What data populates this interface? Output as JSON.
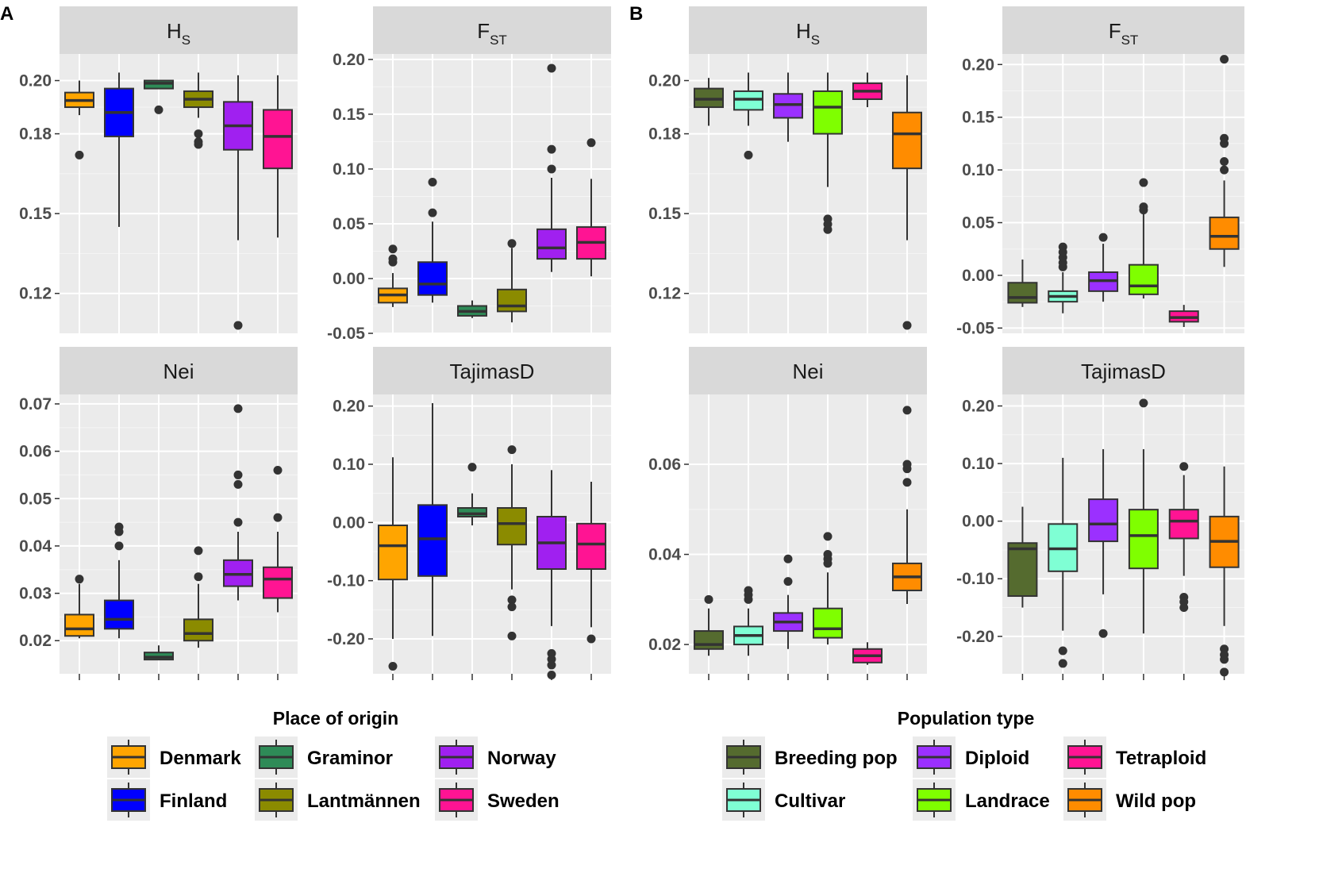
{
  "panel_labels": [
    "A",
    "B"
  ],
  "chart_data": [
    {
      "panel": "A",
      "type": "boxplot",
      "legend_title": "Place of origin",
      "groups": [
        {
          "name": "Denmark",
          "color": "#FFA500"
        },
        {
          "name": "Finland",
          "color": "#0000FF"
        },
        {
          "name": "Graminor",
          "color": "#2E8B57"
        },
        {
          "name": "Lantmännen",
          "color": "#8B8B00"
        },
        {
          "name": "Norway",
          "color": "#A020F0"
        },
        {
          "name": "Sweden",
          "color": "#FF1493"
        }
      ],
      "facets": [
        {
          "title": "Hs",
          "title_main": "H",
          "title_sub": "S",
          "ylim": [
            0.105,
            0.21
          ],
          "yticks": [
            0.12,
            0.15,
            0.18,
            0.2
          ],
          "ytick_labels": [
            "0.12",
            "0.15",
            "0.18",
            "0.20"
          ],
          "boxes": [
            {
              "wlo": 0.187,
              "q1": 0.19,
              "med": 0.1925,
              "q3": 0.1955,
              "whi": 0.2,
              "outliers": [
                0.172
              ]
            },
            {
              "wlo": 0.145,
              "q1": 0.179,
              "med": 0.188,
              "q3": 0.197,
              "whi": 0.203,
              "outliers": []
            },
            {
              "wlo": 0.197,
              "q1": 0.197,
              "med": 0.199,
              "q3": 0.2,
              "whi": 0.2,
              "outliers": [
                0.189
              ]
            },
            {
              "wlo": 0.186,
              "q1": 0.19,
              "med": 0.193,
              "q3": 0.196,
              "whi": 0.203,
              "outliers": [
                0.18,
                0.177,
                0.176
              ]
            },
            {
              "wlo": 0.14,
              "q1": 0.174,
              "med": 0.183,
              "q3": 0.192,
              "whi": 0.202,
              "outliers": [
                0.108
              ]
            },
            {
              "wlo": 0.141,
              "q1": 0.167,
              "med": 0.179,
              "q3": 0.189,
              "whi": 0.202,
              "outliers": []
            }
          ]
        },
        {
          "title": "FST",
          "title_main": "F",
          "title_sub": "ST",
          "ylim": [
            -0.05,
            0.205
          ],
          "yticks": [
            -0.05,
            0.0,
            0.05,
            0.1,
            0.15,
            0.2
          ],
          "ytick_labels": [
            "-0.05",
            "0.00",
            "0.05",
            "0.10",
            "0.15",
            "0.20"
          ],
          "boxes": [
            {
              "wlo": -0.026,
              "q1": -0.022,
              "med": -0.015,
              "q3": -0.009,
              "whi": 0.005,
              "outliers": [
                0.015,
                0.018,
                0.027
              ]
            },
            {
              "wlo": -0.022,
              "q1": -0.015,
              "med": -0.005,
              "q3": 0.015,
              "whi": 0.052,
              "outliers": [
                0.06,
                0.088
              ]
            },
            {
              "wlo": -0.036,
              "q1": -0.034,
              "med": -0.03,
              "q3": -0.025,
              "whi": -0.02,
              "outliers": []
            },
            {
              "wlo": -0.04,
              "q1": -0.03,
              "med": -0.025,
              "q3": -0.01,
              "whi": 0.028,
              "outliers": [
                0.032
              ]
            },
            {
              "wlo": 0.006,
              "q1": 0.018,
              "med": 0.028,
              "q3": 0.045,
              "whi": 0.092,
              "outliers": [
                0.1,
                0.118,
                0.192
              ]
            },
            {
              "wlo": 0.002,
              "q1": 0.018,
              "med": 0.033,
              "q3": 0.047,
              "whi": 0.091,
              "outliers": [
                0.124
              ]
            }
          ]
        },
        {
          "title": "Nei",
          "title_main": "Nei",
          "title_sub": "",
          "ylim": [
            0.013,
            0.072
          ],
          "yticks": [
            0.02,
            0.03,
            0.04,
            0.05,
            0.06,
            0.07
          ],
          "ytick_labels": [
            "0.02",
            "0.03",
            "0.04",
            "0.05",
            "0.06",
            "0.07"
          ],
          "boxes": [
            {
              "wlo": 0.0205,
              "q1": 0.021,
              "med": 0.0225,
              "q3": 0.0255,
              "whi": 0.032,
              "outliers": [
                0.033
              ]
            },
            {
              "wlo": 0.0205,
              "q1": 0.0225,
              "med": 0.0245,
              "q3": 0.0285,
              "whi": 0.037,
              "outliers": [
                0.04,
                0.043,
                0.044
              ]
            },
            {
              "wlo": 0.016,
              "q1": 0.016,
              "med": 0.0165,
              "q3": 0.0175,
              "whi": 0.019,
              "outliers": []
            },
            {
              "wlo": 0.0185,
              "q1": 0.02,
              "med": 0.0215,
              "q3": 0.0245,
              "whi": 0.032,
              "outliers": [
                0.0335,
                0.039
              ]
            },
            {
              "wlo": 0.0285,
              "q1": 0.0315,
              "med": 0.034,
              "q3": 0.037,
              "whi": 0.043,
              "outliers": [
                0.045,
                0.053,
                0.055,
                0.069
              ]
            },
            {
              "wlo": 0.026,
              "q1": 0.029,
              "med": 0.033,
              "q3": 0.0355,
              "whi": 0.043,
              "outliers": [
                0.046,
                0.056
              ]
            }
          ]
        },
        {
          "title": "TajimasD",
          "title_main": "TajimasD",
          "title_sub": "",
          "ylim": [
            -0.26,
            0.22
          ],
          "yticks": [
            -0.2,
            -0.1,
            0.0,
            0.1,
            0.2
          ],
          "ytick_labels": [
            "-0.20",
            "-0.10",
            "0.00",
            "0.10",
            "0.20"
          ],
          "boxes": [
            {
              "wlo": -0.2,
              "q1": -0.098,
              "med": -0.04,
              "q3": -0.005,
              "whi": 0.112,
              "outliers": [
                -0.247
              ]
            },
            {
              "wlo": -0.195,
              "q1": -0.092,
              "med": -0.028,
              "q3": 0.03,
              "whi": 0.205,
              "outliers": []
            },
            {
              "wlo": -0.005,
              "q1": 0.01,
              "med": 0.015,
              "q3": 0.025,
              "whi": 0.05,
              "outliers": [
                0.095
              ]
            },
            {
              "wlo": -0.115,
              "q1": -0.038,
              "med": -0.002,
              "q3": 0.025,
              "whi": 0.1,
              "outliers": [
                0.125,
                -0.133,
                -0.145,
                -0.195
              ]
            },
            {
              "wlo": -0.178,
              "q1": -0.08,
              "med": -0.035,
              "q3": 0.01,
              "whi": 0.09,
              "outliers": [
                -0.225,
                -0.235,
                -0.245,
                -0.262
              ]
            },
            {
              "wlo": -0.18,
              "q1": -0.08,
              "med": -0.037,
              "q3": -0.002,
              "whi": 0.07,
              "outliers": [
                -0.2
              ]
            }
          ]
        }
      ]
    },
    {
      "panel": "B",
      "type": "boxplot",
      "legend_title": "Population type",
      "groups": [
        {
          "name": "Breeding pop",
          "color": "#556B2F"
        },
        {
          "name": "Cultivar",
          "color": "#7FFFD4"
        },
        {
          "name": "Diploid",
          "color": "#9B30FF"
        },
        {
          "name": "Landrace",
          "color": "#7FFF00"
        },
        {
          "name": "Tetraploid",
          "color": "#FF1493"
        },
        {
          "name": "Wild pop",
          "color": "#FF8C00"
        }
      ],
      "facets": [
        {
          "title": "Hs",
          "title_main": "H",
          "title_sub": "S",
          "ylim": [
            0.105,
            0.21
          ],
          "yticks": [
            0.12,
            0.15,
            0.18,
            0.2
          ],
          "ytick_labels": [
            "0.12",
            "0.15",
            "0.18",
            "0.20"
          ],
          "boxes": [
            {
              "wlo": 0.183,
              "q1": 0.19,
              "med": 0.193,
              "q3": 0.197,
              "whi": 0.201,
              "outliers": []
            },
            {
              "wlo": 0.183,
              "q1": 0.189,
              "med": 0.193,
              "q3": 0.196,
              "whi": 0.203,
              "outliers": [
                0.172
              ]
            },
            {
              "wlo": 0.177,
              "q1": 0.186,
              "med": 0.191,
              "q3": 0.195,
              "whi": 0.203,
              "outliers": []
            },
            {
              "wlo": 0.16,
              "q1": 0.18,
              "med": 0.19,
              "q3": 0.196,
              "whi": 0.203,
              "outliers": [
                0.148,
                0.146,
                0.144
              ]
            },
            {
              "wlo": 0.19,
              "q1": 0.193,
              "med": 0.196,
              "q3": 0.199,
              "whi": 0.203,
              "outliers": []
            },
            {
              "wlo": 0.14,
              "q1": 0.167,
              "med": 0.18,
              "q3": 0.188,
              "whi": 0.202,
              "outliers": [
                0.108
              ]
            }
          ]
        },
        {
          "title": "FST",
          "title_main": "F",
          "title_sub": "ST",
          "ylim": [
            -0.055,
            0.21
          ],
          "yticks": [
            -0.05,
            0.0,
            0.05,
            0.1,
            0.15,
            0.2
          ],
          "ytick_labels": [
            "-0.05",
            "0.00",
            "0.05",
            "0.10",
            "0.15",
            "0.20"
          ],
          "boxes": [
            {
              "wlo": -0.03,
              "q1": -0.026,
              "med": -0.021,
              "q3": -0.007,
              "whi": 0.015,
              "outliers": []
            },
            {
              "wlo": -0.036,
              "q1": -0.025,
              "med": -0.02,
              "q3": -0.015,
              "whi": 0.003,
              "outliers": [
                0.008,
                0.012,
                0.017,
                0.022,
                0.027
              ]
            },
            {
              "wlo": -0.025,
              "q1": -0.015,
              "med": -0.005,
              "q3": 0.003,
              "whi": 0.03,
              "outliers": [
                0.036
              ]
            },
            {
              "wlo": -0.022,
              "q1": -0.018,
              "med": -0.01,
              "q3": 0.01,
              "whi": 0.058,
              "outliers": [
                0.062,
                0.065,
                0.088
              ]
            },
            {
              "wlo": -0.049,
              "q1": -0.044,
              "med": -0.04,
              "q3": -0.034,
              "whi": -0.028,
              "outliers": []
            },
            {
              "wlo": 0.008,
              "q1": 0.025,
              "med": 0.037,
              "q3": 0.055,
              "whi": 0.09,
              "outliers": [
                0.1,
                0.108,
                0.125,
                0.13,
                0.205
              ]
            }
          ]
        },
        {
          "title": "Nei",
          "title_main": "Nei",
          "title_sub": "",
          "ylim": [
            0.0135,
            0.0755
          ],
          "yticks": [
            0.02,
            0.04,
            0.06
          ],
          "ytick_labels": [
            "0.02",
            "0.04",
            "0.06"
          ],
          "boxes": [
            {
              "wlo": 0.0175,
              "q1": 0.019,
              "med": 0.02,
              "q3": 0.023,
              "whi": 0.028,
              "outliers": [
                0.03
              ]
            },
            {
              "wlo": 0.0175,
              "q1": 0.02,
              "med": 0.022,
              "q3": 0.024,
              "whi": 0.028,
              "outliers": [
                0.03,
                0.031,
                0.032
              ]
            },
            {
              "wlo": 0.019,
              "q1": 0.023,
              "med": 0.025,
              "q3": 0.027,
              "whi": 0.031,
              "outliers": [
                0.034,
                0.039
              ]
            },
            {
              "wlo": 0.02,
              "q1": 0.0215,
              "med": 0.0235,
              "q3": 0.028,
              "whi": 0.036,
              "outliers": [
                0.038,
                0.039,
                0.04,
                0.044
              ]
            },
            {
              "wlo": 0.0155,
              "q1": 0.016,
              "med": 0.0175,
              "q3": 0.019,
              "whi": 0.0205,
              "outliers": []
            },
            {
              "wlo": 0.029,
              "q1": 0.032,
              "med": 0.035,
              "q3": 0.038,
              "whi": 0.05,
              "outliers": [
                0.056,
                0.059,
                0.06,
                0.072
              ]
            }
          ]
        },
        {
          "title": "TajimasD",
          "title_main": "TajimasD",
          "title_sub": "",
          "ylim": [
            -0.265,
            0.22
          ],
          "yticks": [
            -0.2,
            -0.1,
            0.0,
            0.1,
            0.2
          ],
          "ytick_labels": [
            "-0.20",
            "-0.10",
            "0.00",
            "0.10",
            "0.20"
          ],
          "boxes": [
            {
              "wlo": -0.15,
              "q1": -0.13,
              "med": -0.048,
              "q3": -0.038,
              "whi": 0.025,
              "outliers": []
            },
            {
              "wlo": -0.19,
              "q1": -0.087,
              "med": -0.048,
              "q3": -0.005,
              "whi": 0.11,
              "outliers": [
                -0.225,
                -0.247
              ]
            },
            {
              "wlo": -0.127,
              "q1": -0.035,
              "med": -0.005,
              "q3": 0.038,
              "whi": 0.125,
              "outliers": [
                -0.195
              ]
            },
            {
              "wlo": -0.195,
              "q1": -0.082,
              "med": -0.025,
              "q3": 0.02,
              "whi": 0.125,
              "outliers": [
                0.205
              ]
            },
            {
              "wlo": -0.095,
              "q1": -0.03,
              "med": 0.0,
              "q3": 0.02,
              "whi": 0.08,
              "outliers": [
                0.095,
                -0.132,
                -0.14,
                -0.15
              ]
            },
            {
              "wlo": -0.182,
              "q1": -0.08,
              "med": -0.035,
              "q3": 0.008,
              "whi": 0.095,
              "outliers": [
                -0.222,
                -0.232,
                -0.24,
                -0.262
              ]
            }
          ]
        }
      ]
    }
  ]
}
